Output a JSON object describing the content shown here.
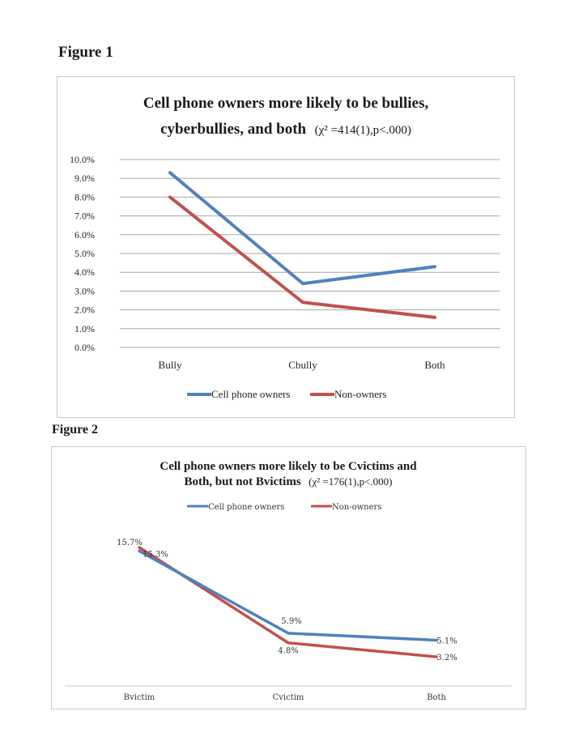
{
  "figures": {
    "fig1_label": "Figure 1",
    "fig2_label": "Figure 2"
  },
  "colors": {
    "owners": "#4f81bd",
    "nonowners": "#c0504d",
    "grid": "#a6a6a6"
  },
  "chart_data": [
    {
      "type": "line",
      "title_line1": "Cell phone owners more likely to be bullies,",
      "title_line2": "cyberbullies, and both",
      "title_stat": "(χ² =414(1),p<.000)",
      "categories": [
        "Bully",
        "Cbully",
        "Both"
      ],
      "series": [
        {
          "name": "Cell phone owners",
          "values": [
            9.3,
            3.4,
            4.3
          ]
        },
        {
          "name": "Non-owners",
          "values": [
            8.0,
            2.4,
            1.6
          ]
        }
      ],
      "ylim": [
        0,
        10
      ],
      "yticks": [
        "0.0%",
        "1.0%",
        "2.0%",
        "3.0%",
        "4.0%",
        "5.0%",
        "6.0%",
        "7.0%",
        "8.0%",
        "9.0%",
        "10.0%"
      ],
      "grid": true,
      "legend": "bottom"
    },
    {
      "type": "line",
      "title_line1": "Cell phone owners more likely to be Cvictims and",
      "title_line2": "Both, but not Bvictims",
      "title_stat": "(χ² =176(1),p<.000)",
      "categories": [
        "Bvictim",
        "Cvictim",
        "Both"
      ],
      "series": [
        {
          "name": "Cell phone owners",
          "values": [
            15.3,
            5.9,
            5.1
          ],
          "labels": [
            "15.3%",
            "5.9%",
            "5.1%"
          ]
        },
        {
          "name": "Non-owners",
          "values": [
            15.7,
            4.8,
            3.2
          ],
          "labels": [
            "15.7%",
            "4.8%",
            "3.2%"
          ]
        }
      ],
      "grid": false,
      "legend": "top"
    }
  ]
}
